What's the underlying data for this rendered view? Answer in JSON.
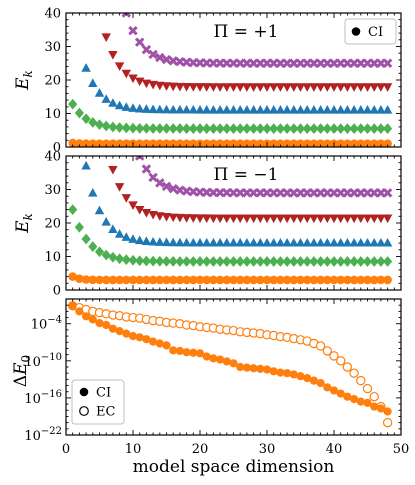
{
  "colors": {
    "orange": "#ff7f0e",
    "green": "#4caf50",
    "blue": "#1f77b4",
    "red": "#b22222",
    "purple": "#a052a8"
  },
  "chart_data": [
    {
      "type": "scatter",
      "panel_label": "Π = +1",
      "ylabel": "E_k",
      "xlim": [
        0,
        50
      ],
      "ylim": [
        0,
        40
      ],
      "yticks": [
        0,
        10,
        20,
        30,
        40
      ],
      "x_tick_labels_shown": false,
      "legend": {
        "position": "top-right",
        "label": "CI",
        "marker": "filled-circle"
      },
      "series": [
        {
          "marker": "circle",
          "color": "orange",
          "start": 1,
          "converged": 1.0,
          "init": 1.2,
          "decay": 1.0
        },
        {
          "marker": "diamond",
          "color": "green",
          "start": 1,
          "converged": 5.5,
          "init": 12.8,
          "decay": 2.2
        },
        {
          "marker": "triangle-up",
          "color": "blue",
          "start": 3,
          "converged": 11.0,
          "init": 23.5,
          "decay": 2.2
        },
        {
          "marker": "triangle-down",
          "color": "red",
          "start": 5,
          "converged": 18.0,
          "init": 41.0,
          "decay": 2.3
        },
        {
          "marker": "x",
          "color": "purple",
          "start": 9,
          "converged": 25.0,
          "init": 40.0,
          "decay": 2.3
        }
      ]
    },
    {
      "type": "scatter",
      "panel_label": "Π = −1",
      "ylabel": "E_k",
      "xlim": [
        0,
        50
      ],
      "ylim": [
        0,
        40
      ],
      "yticks": [
        0,
        10,
        20,
        30,
        40
      ],
      "x_tick_labels_shown": false,
      "series": [
        {
          "marker": "circle",
          "color": "orange",
          "start": 1,
          "converged": 3.0,
          "init": 4.0,
          "decay": 1.0
        },
        {
          "marker": "diamond",
          "color": "green",
          "start": 1,
          "converged": 8.5,
          "init": 24.0,
          "decay": 2.4
        },
        {
          "marker": "triangle-up",
          "color": "blue",
          "start": 3,
          "converged": 14.0,
          "init": 37.0,
          "decay": 2.3
        },
        {
          "marker": "triangle-down",
          "color": "red",
          "start": 7,
          "converged": 21.5,
          "init": 36.0,
          "decay": 2.3
        },
        {
          "marker": "x",
          "color": "purple",
          "start": 11,
          "converged": 29.0,
          "init": 40.0,
          "decay": 2.3
        }
      ]
    },
    {
      "type": "scatter",
      "ylabel": "ΔE_0",
      "xlabel": "model space dimension",
      "xlim": [
        0,
        50
      ],
      "xticks": [
        0,
        10,
        20,
        30,
        40,
        50
      ],
      "yscale": "log",
      "ylim_log10": [
        -22,
        0
      ],
      "yticks": [
        {
          "label": "10",
          "exp": "−4",
          "log10": -4
        },
        {
          "label": "10",
          "exp": "−10",
          "log10": -10
        },
        {
          "label": "10",
          "exp": "−16",
          "log10": -16
        },
        {
          "label": "10",
          "exp": "−22",
          "log10": -22
        }
      ],
      "legend": {
        "position": "bottom-left",
        "entries": [
          {
            "label": "CI",
            "marker": "filled-circle"
          },
          {
            "label": "EC",
            "marker": "open-circle"
          }
        ]
      },
      "series": [
        {
          "name": "CI",
          "marker": "filled-circle",
          "color": "orange",
          "x": [
            1,
            2,
            3,
            4,
            5,
            6,
            7,
            8,
            9,
            10,
            11,
            12,
            13,
            14,
            15,
            16,
            17,
            18,
            19,
            20,
            21,
            22,
            23,
            24,
            25,
            26,
            27,
            28,
            29,
            30,
            31,
            32,
            33,
            34,
            35,
            36,
            37,
            38,
            39,
            40,
            41,
            42,
            43,
            44,
            45,
            46,
            47,
            48
          ],
          "log10_y": [
            -1.1,
            -2.0,
            -2.8,
            -3.3,
            -3.9,
            -4.2,
            -4.8,
            -5.2,
            -5.6,
            -6.0,
            -6.2,
            -6.5,
            -6.9,
            -7.2,
            -7.5,
            -8.3,
            -8.4,
            -8.6,
            -8.7,
            -8.8,
            -9.3,
            -9.6,
            -9.8,
            -10.1,
            -10.4,
            -11.0,
            -11.1,
            -11.2,
            -11.3,
            -11.4,
            -11.7,
            -11.9,
            -12.0,
            -12.2,
            -12.5,
            -12.8,
            -13.2,
            -13.6,
            -14.3,
            -14.8,
            -15.3,
            -15.8,
            -16.2,
            -16.6,
            -16.8,
            -17.4,
            -17.7,
            -18.2
          ]
        },
        {
          "name": "EC",
          "marker": "open-circle",
          "color": "orange",
          "x": [
            1,
            2,
            3,
            4,
            5,
            6,
            7,
            8,
            9,
            10,
            11,
            12,
            13,
            14,
            15,
            16,
            17,
            18,
            19,
            20,
            21,
            22,
            23,
            24,
            25,
            26,
            27,
            28,
            29,
            30,
            31,
            32,
            33,
            34,
            35,
            36,
            37,
            38,
            39,
            40,
            41,
            42,
            43,
            44,
            45,
            46,
            47,
            48
          ],
          "log10_y": [
            -1.1,
            -1.4,
            -1.7,
            -2.0,
            -2.2,
            -2.4,
            -2.6,
            -2.7,
            -2.9,
            -3.0,
            -3.1,
            -3.3,
            -3.5,
            -3.6,
            -3.8,
            -3.9,
            -4.0,
            -4.2,
            -4.3,
            -4.5,
            -4.6,
            -4.7,
            -4.9,
            -5.0,
            -5.1,
            -5.3,
            -5.4,
            -5.5,
            -5.6,
            -5.8,
            -5.9,
            -6.1,
            -6.2,
            -6.4,
            -6.6,
            -6.8,
            -7.2,
            -7.6,
            -8.4,
            -9.2,
            -10.0,
            -11.0,
            -12.0,
            -13.2,
            -14.5,
            -15.8,
            -17.4,
            -20.0
          ]
        }
      ]
    }
  ]
}
